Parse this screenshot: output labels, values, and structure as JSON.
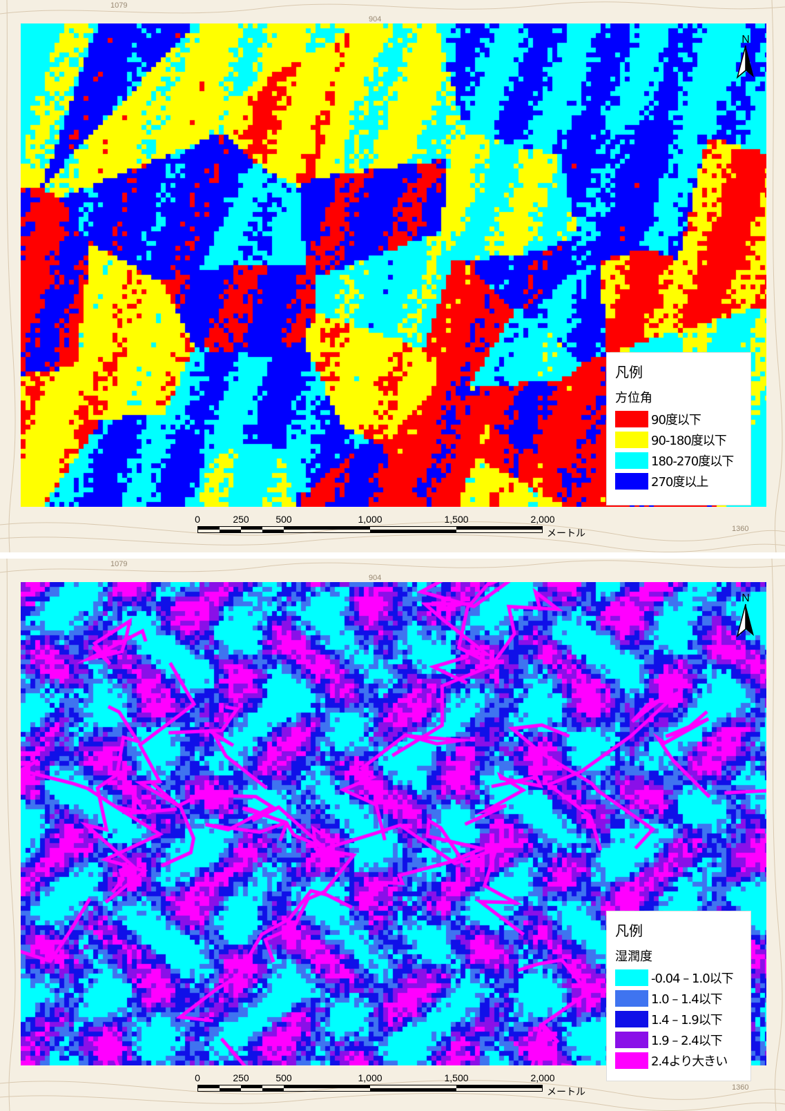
{
  "maps": [
    {
      "id": "aspect",
      "legend": {
        "title": "凡例",
        "subtitle": "方位角",
        "items": [
          {
            "label": "90度以下",
            "color": "#ff0000"
          },
          {
            "label": "90-180度以下",
            "color": "#ffff00"
          },
          {
            "label": "180-270度以下",
            "color": "#00ffff"
          },
          {
            "label": "270度以上",
            "color": "#0000ff"
          }
        ]
      },
      "north_label": "N",
      "scale": {
        "ticks": [
          "0",
          "250",
          "500",
          "1,000",
          "1,500",
          "2,000"
        ],
        "unit": "メートル"
      },
      "topo_labels": [
        "1079",
        "904",
        "1360"
      ]
    },
    {
      "id": "wetness",
      "legend": {
        "title": "凡例",
        "subtitle": "湿潤度",
        "items": [
          {
            "label": "-0.04 – 1.0以下",
            "color": "#00ffff"
          },
          {
            "label": "1.0 – 1.4以下",
            "color": "#3f74f0"
          },
          {
            "label": "1.4 – 1.9以下",
            "color": "#1010e8"
          },
          {
            "label": "1.9 – 2.4以下",
            "color": "#8a10e8"
          },
          {
            "label": "2.4より大きい",
            "color": "#ff00ff"
          }
        ]
      },
      "north_label": "N",
      "scale": {
        "ticks": [
          "0",
          "250",
          "500",
          "1,000",
          "1,500",
          "2,000"
        ],
        "unit": "メートル"
      },
      "topo_labels": [
        "1079",
        "904",
        "1360"
      ]
    }
  ]
}
